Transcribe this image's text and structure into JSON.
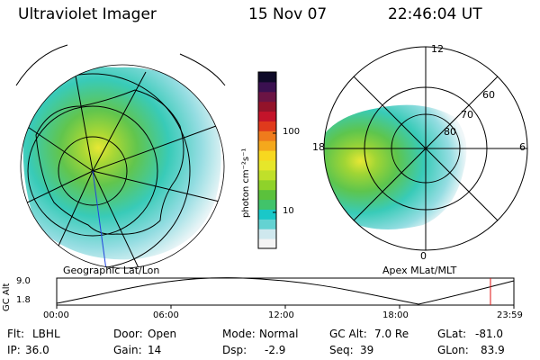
{
  "header": {
    "instrument": "Ultraviolet Imager",
    "date": "15 Nov 07",
    "time": "22:46:04 UT"
  },
  "left_panel": {
    "label": "Geographic Lat/Lon"
  },
  "right_panel": {
    "label": "Apex MLat/MLT",
    "mlt_labels": {
      "top": "12",
      "bottom": "0",
      "left": "18",
      "right": "6"
    },
    "mlat_labels": [
      "60",
      "70",
      "80"
    ]
  },
  "colorbar": {
    "unit_label": "photon cm⁻²s⁻¹",
    "ticks": [
      "100",
      "10"
    ],
    "scale": "log",
    "colors": [
      "#f4f4f4",
      "#cfe8ee",
      "#64d2d2",
      "#1ac8c8",
      "#41c36a",
      "#5bc13c",
      "#8fd22a",
      "#c0e02a",
      "#e6e62a",
      "#f7d81f",
      "#f4a81c",
      "#ef7b1c",
      "#e03a1c",
      "#c4142a",
      "#93132a",
      "#6b1444",
      "#3a1050",
      "#0e0a28"
    ]
  },
  "gc_alt_chart": {
    "ylabel": "GC Alt",
    "yticks": [
      "9.0",
      "1.8"
    ],
    "xticks": [
      "00:00",
      "06:00",
      "12:00",
      "18:00",
      "23:59"
    ],
    "current_time_hours": 22.77
  },
  "info": {
    "flt_label": "Flt:",
    "flt": "LBHL",
    "ip_label": "IP:",
    "ip": "36.0",
    "door_label": "Door:",
    "door": "Open",
    "gain_label": "Gain:",
    "gain": "14",
    "mode_label": "Mode:",
    "mode": "Normal",
    "dsp_label": "Dsp:",
    "dsp": "-2.9",
    "gcalt_label": "GC Alt:",
    "gcalt": "7.0 Re",
    "seq_label": "Seq:",
    "seq": "39",
    "glat_label": "GLat:",
    "glat": "-81.0",
    "glon_label": "GLon:",
    "glon": "83.9"
  }
}
